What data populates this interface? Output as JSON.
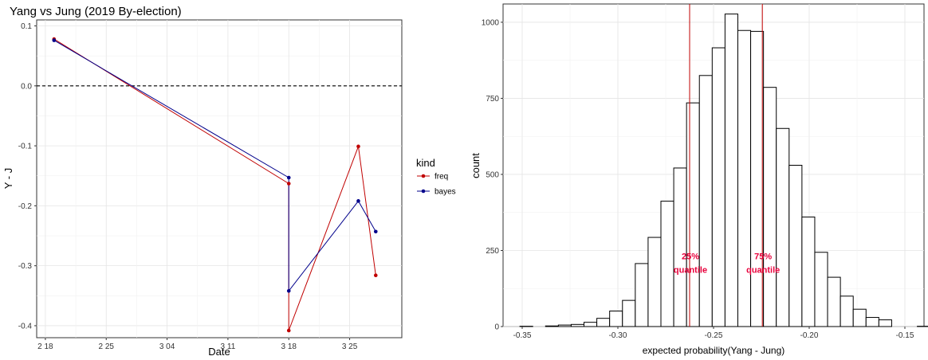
{
  "chart_data": [
    {
      "type": "line",
      "title": "Yang vs Jung (2019 By-election)",
      "xlabel": "Date",
      "ylabel": "Y - J",
      "xlim": [
        "2019-02-17",
        "2019-03-31"
      ],
      "ylim": [
        -0.42,
        0.11
      ],
      "x_tick_dates": [
        "2019-02-18",
        "2019-02-25",
        "2019-03-04",
        "2019-03-11",
        "2019-03-18",
        "2019-03-25"
      ],
      "x_tick_labels": [
        "2 18",
        "2 25",
        "3 04",
        "3 11",
        "3 18",
        "3 25"
      ],
      "y_ticks": [
        0.1,
        0.0,
        -0.1,
        -0.2,
        -0.3,
        -0.4
      ],
      "y_tick_labels": [
        "0.1",
        "0.0",
        "-0.1",
        "-0.2",
        "-0.3",
        "-0.4"
      ],
      "reference_line": {
        "y": 0.0,
        "style": "dashed"
      },
      "grid": true,
      "legend": {
        "title": "kind",
        "position": "right"
      },
      "series": [
        {
          "name": "freq",
          "color": "#c00000",
          "points": [
            {
              "x": "2019-02-19",
              "y": 0.078
            },
            {
              "x": "2019-03-18",
              "y": -0.163
            },
            {
              "x": "2019-03-18",
              "y": -0.408
            },
            {
              "x": "2019-03-26",
              "y": -0.101
            },
            {
              "x": "2019-03-28",
              "y": -0.316
            }
          ]
        },
        {
          "name": "bayes",
          "color": "#00008b",
          "points": [
            {
              "x": "2019-02-19",
              "y": 0.076
            },
            {
              "x": "2019-03-18",
              "y": -0.153
            },
            {
              "x": "2019-03-18",
              "y": -0.342
            },
            {
              "x": "2019-03-26",
              "y": -0.192
            },
            {
              "x": "2019-03-28",
              "y": -0.243
            }
          ]
        }
      ]
    },
    {
      "type": "bar",
      "subtype": "histogram",
      "xlabel": "expected probability(Yang - Jung)",
      "ylabel": "count",
      "xlim": [
        -0.36,
        -0.14
      ],
      "ylim": [
        0,
        1060
      ],
      "x_ticks": [
        -0.35,
        -0.3,
        -0.25,
        -0.2,
        -0.15
      ],
      "x_tick_labels": [
        "-0.35",
        "-0.30",
        "-0.25",
        "-0.20",
        "-0.15"
      ],
      "y_ticks": [
        0,
        250,
        500,
        750,
        1000
      ],
      "y_tick_labels": [
        "0",
        "250",
        "500",
        "750",
        "1000"
      ],
      "grid": true,
      "bin_start": -0.3512,
      "bin_width": 0.0067,
      "counts": [
        1,
        0,
        2,
        5,
        7,
        14,
        27,
        51,
        86,
        207,
        293,
        412,
        521,
        735,
        825,
        916,
        1027,
        973,
        970,
        786,
        651,
        530,
        360,
        244,
        162,
        100,
        57,
        30,
        22,
        0,
        0,
        1
      ],
      "vlines": [
        {
          "x": -0.2625,
          "label_line1": "25%",
          "label_line2": "quantile"
        },
        {
          "x": -0.2245,
          "label_line1": "75%",
          "label_line2": "quantile"
        }
      ],
      "vline_label_y": 190,
      "vline_color": "#c00000",
      "label_color": "#e8003c"
    }
  ]
}
